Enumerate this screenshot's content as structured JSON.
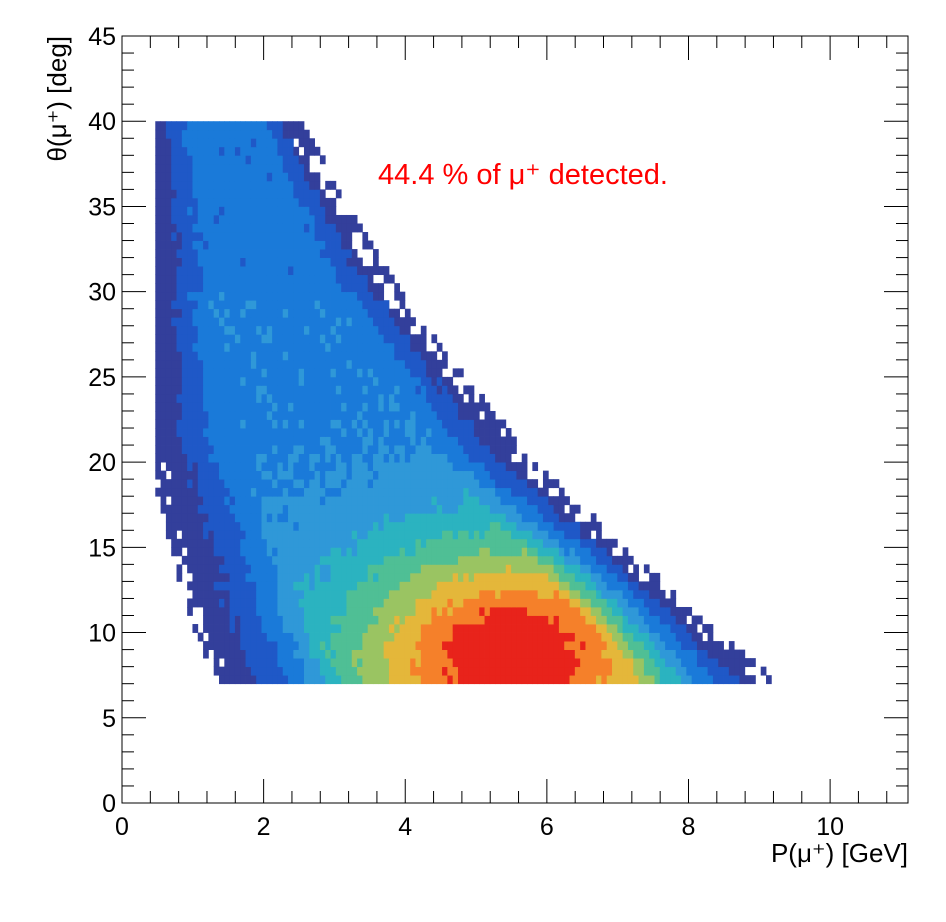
{
  "chart_data": {
    "type": "heatmap",
    "xlabel": "P(μ⁺) [GeV]",
    "ylabel": "θ(μ⁺) [deg]",
    "xlim": [
      0,
      11.1
    ],
    "ylim": [
      0,
      45
    ],
    "x_ticks": [
      0,
      2,
      4,
      6,
      8,
      10
    ],
    "y_ticks": [
      0,
      5,
      10,
      15,
      20,
      25,
      30,
      35,
      40,
      45
    ],
    "grid": false,
    "legend": "none",
    "colormap": [
      "#333f9b",
      "#1f58c7",
      "#1a7ad9",
      "#2f98d8",
      "#2bb3c0",
      "#4fbf95",
      "#9ac462",
      "#e4b73a",
      "#f5802a",
      "#e8231b"
    ],
    "annotation": {
      "text": "44.4 % of μ⁺ detected.",
      "color": "#ff0000"
    },
    "region": {
      "p_min": 0.47,
      "theta_min": 7.0,
      "theta_max": 40.0,
      "upper_edge": [
        {
          "theta": 40.0,
          "p": 2.4
        },
        {
          "theta": 30.0,
          "p": 3.8
        },
        {
          "theta": 20.0,
          "p": 5.7
        },
        {
          "theta": 15.0,
          "p": 7.0
        },
        {
          "theta": 10.0,
          "p": 8.3
        },
        {
          "theta": 7.0,
          "p": 9.2
        }
      ],
      "lower_edge": [
        {
          "theta": 21.0,
          "p": 0.47
        },
        {
          "theta": 15.0,
          "p": 0.8
        },
        {
          "theta": 10.0,
          "p": 1.15
        },
        {
          "theta": 7.0,
          "p": 1.5
        }
      ],
      "peak": {
        "p": 5.5,
        "theta": 8.5
      }
    }
  }
}
